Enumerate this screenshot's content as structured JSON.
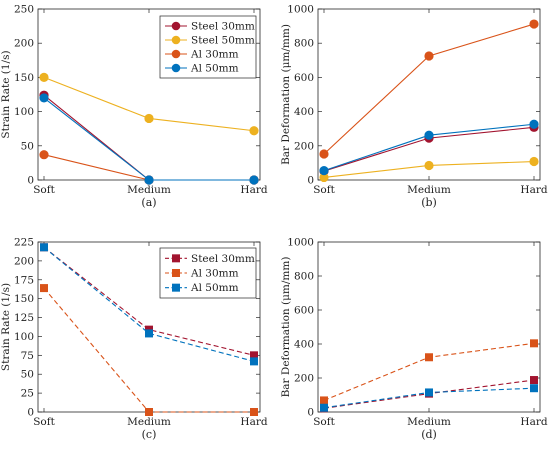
{
  "chart_data": [
    {
      "type": "line",
      "caption": "(a)",
      "ylabel": "Strain Rate (1/s)",
      "xlabel": "",
      "categories": [
        "Soft",
        "Medium",
        "Hard"
      ],
      "ylim": [
        0,
        250
      ],
      "yticks": [
        0,
        50,
        100,
        150,
        200,
        250
      ],
      "grid": false,
      "legend": "top-right",
      "line_style": "solid",
      "marker": "circle",
      "series": [
        {
          "name": "Steel 30mm",
          "color": "#a2142f",
          "values": [
            124,
            0,
            0
          ]
        },
        {
          "name": "Steel 50mm",
          "color": "#edb120",
          "values": [
            150,
            90,
            72
          ]
        },
        {
          "name": "Al 30mm",
          "color": "#d95319",
          "values": [
            37,
            0,
            0
          ]
        },
        {
          "name": "Al 50mm",
          "color": "#0072bd",
          "values": [
            120,
            0,
            0
          ]
        }
      ]
    },
    {
      "type": "line",
      "caption": "(b)",
      "ylabel": "Bar Deformation (μm/mm)",
      "xlabel": "",
      "categories": [
        "Soft",
        "Medium",
        "Hard"
      ],
      "ylim": [
        0,
        1000
      ],
      "yticks": [
        0,
        200,
        400,
        600,
        800,
        1000
      ],
      "grid": false,
      "legend": "none",
      "line_style": "solid",
      "marker": "circle",
      "series": [
        {
          "color": "#a2142f",
          "values": [
            52,
            245,
            308
          ]
        },
        {
          "color": "#edb120",
          "values": [
            15,
            85,
            108
          ]
        },
        {
          "color": "#d95319",
          "values": [
            152,
            725,
            912
          ]
        },
        {
          "color": "#0072bd",
          "values": [
            55,
            262,
            326
          ]
        }
      ]
    },
    {
      "type": "line",
      "caption": "(c)",
      "ylabel": "Strain Rate (1/s)",
      "xlabel": "",
      "categories": [
        "Soft",
        "Medium",
        "Hard"
      ],
      "ylim": [
        0,
        225
      ],
      "yticks": [
        0,
        25,
        50,
        75,
        100,
        125,
        150,
        175,
        200,
        225
      ],
      "grid": false,
      "legend": "top-right",
      "line_style": "dashed",
      "marker": "square",
      "series": [
        {
          "name": "Steel 30mm",
          "color": "#a2142f",
          "values": [
            218,
            109,
            75
          ]
        },
        {
          "name": "Al 30mm",
          "color": "#d95319",
          "values": [
            164,
            0,
            0
          ]
        },
        {
          "name": "Al 50mm",
          "color": "#0072bd",
          "values": [
            218,
            104,
            67
          ]
        }
      ]
    },
    {
      "type": "line",
      "caption": "(d)",
      "ylabel": "Bar Deformation (μm/mm)",
      "xlabel": "",
      "categories": [
        "Soft",
        "Medium",
        "Hard"
      ],
      "ylim": [
        0,
        1000
      ],
      "yticks": [
        0,
        200,
        400,
        600,
        800,
        1000
      ],
      "grid": false,
      "legend": "none",
      "line_style": "dashed",
      "marker": "square",
      "series": [
        {
          "color": "#a2142f",
          "values": [
            22,
            108,
            188
          ]
        },
        {
          "color": "#d95319",
          "values": [
            68,
            322,
            404
          ]
        },
        {
          "color": "#0072bd",
          "values": [
            25,
            115,
            140
          ]
        }
      ]
    }
  ]
}
